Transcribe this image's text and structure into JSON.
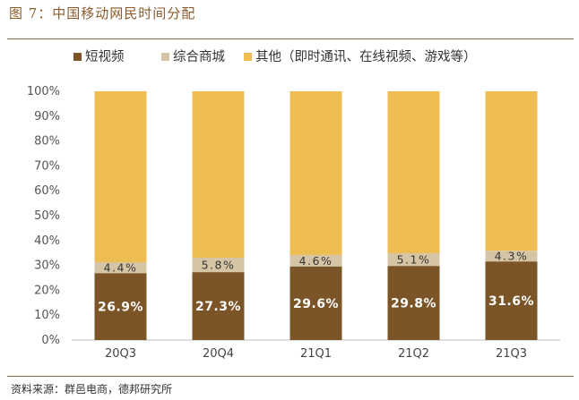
{
  "figure": {
    "title": "图 7：中国移动网民时间分配",
    "source": "资料来源：群邑电商，德邦研究所"
  },
  "chart_data": {
    "type": "bar",
    "stacked": true,
    "normalized": true,
    "categories": [
      "20Q3",
      "20Q4",
      "21Q1",
      "21Q2",
      "21Q3"
    ],
    "series": [
      {
        "name": "短视频",
        "color": "#7B5427",
        "values": [
          26.9,
          27.3,
          29.6,
          29.8,
          31.6
        ],
        "labels": [
          "26.9%",
          "27.3%",
          "29.6%",
          "29.8%",
          "31.6%"
        ]
      },
      {
        "name": "综合商城",
        "color": "#D6C5A4",
        "values": [
          4.4,
          5.8,
          4.6,
          5.1,
          4.3
        ],
        "labels": [
          "4.4%",
          "5.8%",
          "4.6%",
          "5.1%",
          "4.3%"
        ]
      },
      {
        "name": "其他（即时通讯、在线视频、游戏等）",
        "color": "#EDBD52",
        "values": [
          68.7,
          66.9,
          65.8,
          65.1,
          64.1
        ]
      }
    ],
    "ylim": [
      0,
      100
    ],
    "yticks": [
      "0%",
      "10%",
      "20%",
      "30%",
      "40%",
      "50%",
      "60%",
      "70%",
      "80%",
      "90%",
      "100%"
    ],
    "legend_position": "top",
    "grid": false
  }
}
